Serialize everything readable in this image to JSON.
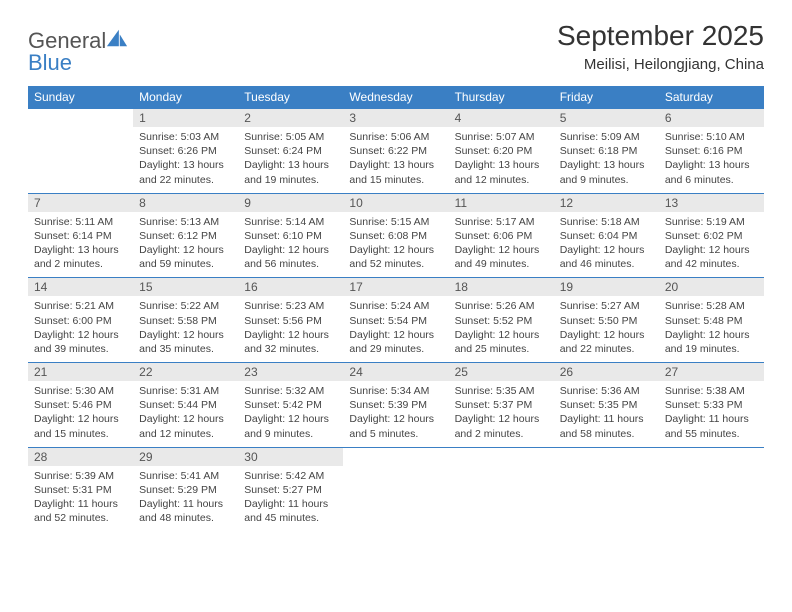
{
  "brand": {
    "name1": "General",
    "name2": "Blue"
  },
  "title": "September 2025",
  "location": "Meilisi, Heilongjiang, China",
  "colors": {
    "accent": "#3a7fc4",
    "header_bg": "#3a7fc4",
    "daynum_bg": "#e9e9e9",
    "text": "#333333",
    "border": "#3a7fc4"
  },
  "daynames": [
    "Sunday",
    "Monday",
    "Tuesday",
    "Wednesday",
    "Thursday",
    "Friday",
    "Saturday"
  ],
  "weeks": [
    [
      {
        "day": "",
        "lines": []
      },
      {
        "day": "1",
        "lines": [
          "Sunrise: 5:03 AM",
          "Sunset: 6:26 PM",
          "Daylight: 13 hours",
          "and 22 minutes."
        ]
      },
      {
        "day": "2",
        "lines": [
          "Sunrise: 5:05 AM",
          "Sunset: 6:24 PM",
          "Daylight: 13 hours",
          "and 19 minutes."
        ]
      },
      {
        "day": "3",
        "lines": [
          "Sunrise: 5:06 AM",
          "Sunset: 6:22 PM",
          "Daylight: 13 hours",
          "and 15 minutes."
        ]
      },
      {
        "day": "4",
        "lines": [
          "Sunrise: 5:07 AM",
          "Sunset: 6:20 PM",
          "Daylight: 13 hours",
          "and 12 minutes."
        ]
      },
      {
        "day": "5",
        "lines": [
          "Sunrise: 5:09 AM",
          "Sunset: 6:18 PM",
          "Daylight: 13 hours",
          "and 9 minutes."
        ]
      },
      {
        "day": "6",
        "lines": [
          "Sunrise: 5:10 AM",
          "Sunset: 6:16 PM",
          "Daylight: 13 hours",
          "and 6 minutes."
        ]
      }
    ],
    [
      {
        "day": "7",
        "lines": [
          "Sunrise: 5:11 AM",
          "Sunset: 6:14 PM",
          "Daylight: 13 hours",
          "and 2 minutes."
        ]
      },
      {
        "day": "8",
        "lines": [
          "Sunrise: 5:13 AM",
          "Sunset: 6:12 PM",
          "Daylight: 12 hours",
          "and 59 minutes."
        ]
      },
      {
        "day": "9",
        "lines": [
          "Sunrise: 5:14 AM",
          "Sunset: 6:10 PM",
          "Daylight: 12 hours",
          "and 56 minutes."
        ]
      },
      {
        "day": "10",
        "lines": [
          "Sunrise: 5:15 AM",
          "Sunset: 6:08 PM",
          "Daylight: 12 hours",
          "and 52 minutes."
        ]
      },
      {
        "day": "11",
        "lines": [
          "Sunrise: 5:17 AM",
          "Sunset: 6:06 PM",
          "Daylight: 12 hours",
          "and 49 minutes."
        ]
      },
      {
        "day": "12",
        "lines": [
          "Sunrise: 5:18 AM",
          "Sunset: 6:04 PM",
          "Daylight: 12 hours",
          "and 46 minutes."
        ]
      },
      {
        "day": "13",
        "lines": [
          "Sunrise: 5:19 AM",
          "Sunset: 6:02 PM",
          "Daylight: 12 hours",
          "and 42 minutes."
        ]
      }
    ],
    [
      {
        "day": "14",
        "lines": [
          "Sunrise: 5:21 AM",
          "Sunset: 6:00 PM",
          "Daylight: 12 hours",
          "and 39 minutes."
        ]
      },
      {
        "day": "15",
        "lines": [
          "Sunrise: 5:22 AM",
          "Sunset: 5:58 PM",
          "Daylight: 12 hours",
          "and 35 minutes."
        ]
      },
      {
        "day": "16",
        "lines": [
          "Sunrise: 5:23 AM",
          "Sunset: 5:56 PM",
          "Daylight: 12 hours",
          "and 32 minutes."
        ]
      },
      {
        "day": "17",
        "lines": [
          "Sunrise: 5:24 AM",
          "Sunset: 5:54 PM",
          "Daylight: 12 hours",
          "and 29 minutes."
        ]
      },
      {
        "day": "18",
        "lines": [
          "Sunrise: 5:26 AM",
          "Sunset: 5:52 PM",
          "Daylight: 12 hours",
          "and 25 minutes."
        ]
      },
      {
        "day": "19",
        "lines": [
          "Sunrise: 5:27 AM",
          "Sunset: 5:50 PM",
          "Daylight: 12 hours",
          "and 22 minutes."
        ]
      },
      {
        "day": "20",
        "lines": [
          "Sunrise: 5:28 AM",
          "Sunset: 5:48 PM",
          "Daylight: 12 hours",
          "and 19 minutes."
        ]
      }
    ],
    [
      {
        "day": "21",
        "lines": [
          "Sunrise: 5:30 AM",
          "Sunset: 5:46 PM",
          "Daylight: 12 hours",
          "and 15 minutes."
        ]
      },
      {
        "day": "22",
        "lines": [
          "Sunrise: 5:31 AM",
          "Sunset: 5:44 PM",
          "Daylight: 12 hours",
          "and 12 minutes."
        ]
      },
      {
        "day": "23",
        "lines": [
          "Sunrise: 5:32 AM",
          "Sunset: 5:42 PM",
          "Daylight: 12 hours",
          "and 9 minutes."
        ]
      },
      {
        "day": "24",
        "lines": [
          "Sunrise: 5:34 AM",
          "Sunset: 5:39 PM",
          "Daylight: 12 hours",
          "and 5 minutes."
        ]
      },
      {
        "day": "25",
        "lines": [
          "Sunrise: 5:35 AM",
          "Sunset: 5:37 PM",
          "Daylight: 12 hours",
          "and 2 minutes."
        ]
      },
      {
        "day": "26",
        "lines": [
          "Sunrise: 5:36 AM",
          "Sunset: 5:35 PM",
          "Daylight: 11 hours",
          "and 58 minutes."
        ]
      },
      {
        "day": "27",
        "lines": [
          "Sunrise: 5:38 AM",
          "Sunset: 5:33 PM",
          "Daylight: 11 hours",
          "and 55 minutes."
        ]
      }
    ],
    [
      {
        "day": "28",
        "lines": [
          "Sunrise: 5:39 AM",
          "Sunset: 5:31 PM",
          "Daylight: 11 hours",
          "and 52 minutes."
        ]
      },
      {
        "day": "29",
        "lines": [
          "Sunrise: 5:41 AM",
          "Sunset: 5:29 PM",
          "Daylight: 11 hours",
          "and 48 minutes."
        ]
      },
      {
        "day": "30",
        "lines": [
          "Sunrise: 5:42 AM",
          "Sunset: 5:27 PM",
          "Daylight: 11 hours",
          "and 45 minutes."
        ]
      },
      {
        "day": "",
        "lines": []
      },
      {
        "day": "",
        "lines": []
      },
      {
        "day": "",
        "lines": []
      },
      {
        "day": "",
        "lines": []
      }
    ]
  ]
}
